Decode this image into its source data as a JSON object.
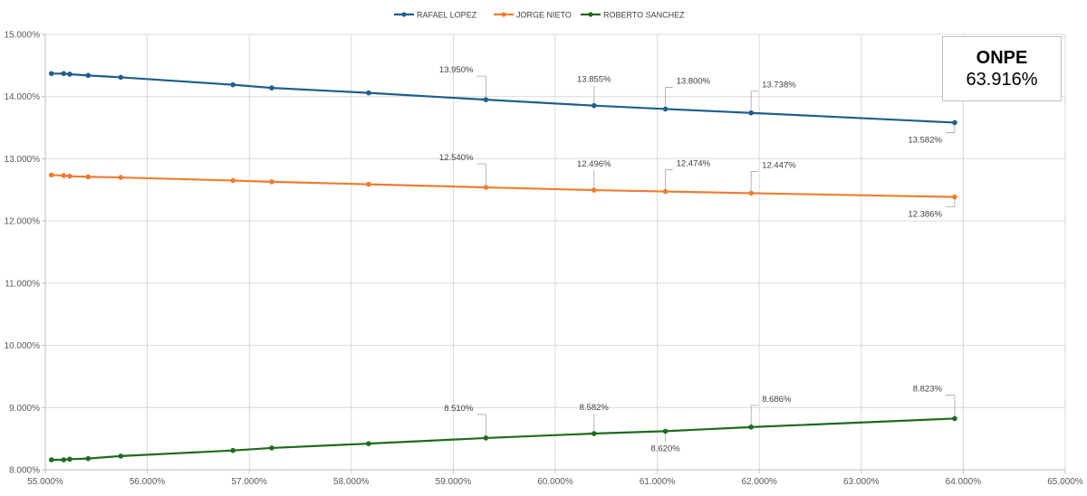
{
  "chart_data": {
    "type": "line",
    "title": "",
    "xlabel": "",
    "ylabel": "",
    "xlim": [
      55.0,
      65.0
    ],
    "ylim": [
      8.0,
      15.0
    ],
    "x_ticks": [
      "55.000%",
      "56.000%",
      "57.000%",
      "58.000%",
      "59.000%",
      "60.000%",
      "61.000%",
      "62.000%",
      "63.000%",
      "64.000%",
      "65.000%"
    ],
    "y_ticks": [
      "8.000%",
      "9.000%",
      "10.000%",
      "11.000%",
      "12.000%",
      "13.000%",
      "14.000%",
      "15.000%"
    ],
    "grid": true,
    "legend_position": "top-center",
    "x": [
      55.06,
      55.18,
      55.24,
      55.42,
      55.74,
      56.84,
      57.22,
      58.17,
      59.32,
      60.38,
      61.08,
      61.92,
      63.916
    ],
    "series": [
      {
        "name": "RAFAEL LOPEZ",
        "color": "#1f5f8b",
        "values": [
          14.37,
          14.37,
          14.36,
          14.34,
          14.31,
          14.19,
          14.14,
          14.06,
          13.95,
          13.855,
          13.8,
          13.738,
          13.582
        ],
        "labels": [
          {
            "index": 8,
            "text": "13.950%",
            "placement": "above-left"
          },
          {
            "index": 9,
            "text": "13.855%",
            "placement": "above"
          },
          {
            "index": 10,
            "text": "13.800%",
            "placement": "above-right"
          },
          {
            "index": 11,
            "text": "13.738%",
            "placement": "above-right"
          },
          {
            "index": 12,
            "text": "13.582%",
            "placement": "below-left"
          }
        ]
      },
      {
        "name": "JORGE NIETO",
        "color": "#ed7d31",
        "values": [
          12.74,
          12.73,
          12.72,
          12.71,
          12.7,
          12.65,
          12.63,
          12.59,
          12.54,
          12.496,
          12.474,
          12.447,
          12.386
        ],
        "labels": [
          {
            "index": 8,
            "text": "12.540%",
            "placement": "above-left"
          },
          {
            "index": 9,
            "text": "12.496%",
            "placement": "above"
          },
          {
            "index": 10,
            "text": "12.474%",
            "placement": "above-right"
          },
          {
            "index": 11,
            "text": "12.447%",
            "placement": "above-right"
          },
          {
            "index": 12,
            "text": "12.386%",
            "placement": "below-left"
          }
        ]
      },
      {
        "name": "ROBERTO SANCHEZ",
        "color": "#1e6b1e",
        "values": [
          8.16,
          8.16,
          8.17,
          8.18,
          8.22,
          8.31,
          8.35,
          8.42,
          8.51,
          8.582,
          8.62,
          8.686,
          8.823
        ],
        "labels": [
          {
            "index": 8,
            "text": "8.510%",
            "placement": "above-left"
          },
          {
            "index": 9,
            "text": "8.582%",
            "placement": "above"
          },
          {
            "index": 10,
            "text": "8.620%",
            "placement": "below"
          },
          {
            "index": 11,
            "text": "8.686%",
            "placement": "above-right"
          },
          {
            "index": 12,
            "text": "8.823%",
            "placement": "above-left"
          }
        ]
      }
    ]
  },
  "onpe_box": {
    "title": "ONPE",
    "value": "63.916%"
  }
}
